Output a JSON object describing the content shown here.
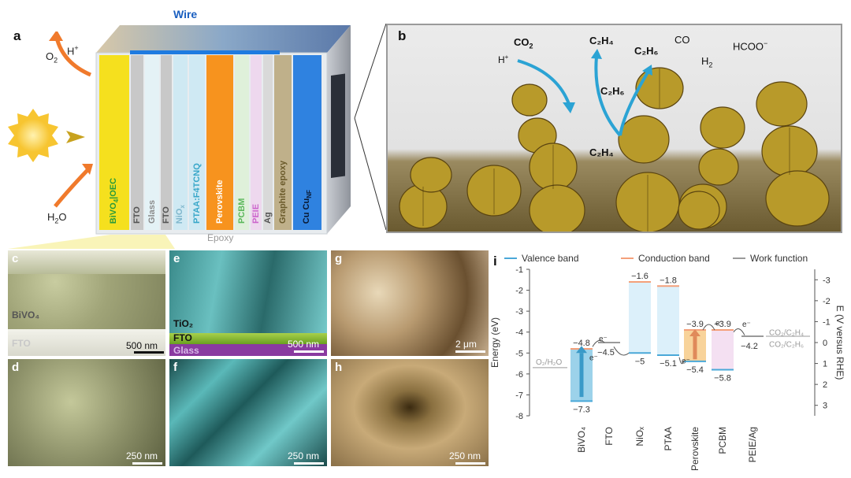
{
  "panels": {
    "a": "a",
    "b": "b",
    "c": "c",
    "d": "d",
    "e": "e",
    "f": "f",
    "g": "g",
    "h": "h",
    "i": "i"
  },
  "device": {
    "wire": "Wire",
    "epoxy": "Epoxy",
    "o2": "O",
    "o2_sub": "2",
    "hplus": "H",
    "hplus_sup": "+",
    "h2o": "H",
    "h2o_sub": "2",
    "h2o_end": "O",
    "layers": [
      {
        "label": "BiVO",
        "sub": "4",
        "after": "|OEC",
        "color": "#f5e01e",
        "text": "#2a9a3a"
      },
      {
        "label": "FTO",
        "color": "#c8c8c8",
        "text": "#555555"
      },
      {
        "label": "Glass",
        "color": "#e4f2f6",
        "text": "#8a8a8a"
      },
      {
        "label": "FTO",
        "color": "#c8c8c8",
        "text": "#555555"
      },
      {
        "label": "NiO",
        "sub": "x",
        "color": "#cfe9f3",
        "text": "#7fb6cc"
      },
      {
        "label": "PTAA:F4TCNQ",
        "color": "#cfe9f3",
        "text": "#39a7c9"
      },
      {
        "label": "Perovskite",
        "color": "#f7931e",
        "text": "#ffffff"
      },
      {
        "label": "PCBM",
        "color": "#dff0da",
        "text": "#5cb85c"
      },
      {
        "label": "PEIE",
        "color": "#eed8ee",
        "text": "#cc66cc"
      },
      {
        "label": "Ag",
        "color": "#d9d9d9",
        "text": "#555555"
      },
      {
        "label": "Graphite epoxy",
        "color": "#bfb08a",
        "text": "#6a5a2a"
      },
      {
        "label": "Cu Cu",
        "sub": "NF",
        "color": "#2f82e0",
        "text": "#0a1a33"
      }
    ]
  },
  "reaction": {
    "co2": "CO",
    "co2_sub": "2",
    "hplus": "H",
    "hplus_sup": "+",
    "c2h4_top": "C₂H₄",
    "c2h6_top": "C₂H₆",
    "co": "CO",
    "hcoo": "HCOO",
    "hcoo_sup": "−",
    "h2": "H",
    "h2_sub": "2",
    "c2h6_mid": "C₂H₆",
    "c2h4_low": "C₂H₄"
  },
  "sem": {
    "c": {
      "bivo4": "BiVO₄",
      "fto": "FTO",
      "scale": "500 nm"
    },
    "d": {
      "scale": "250 nm"
    },
    "e": {
      "tio2": "TiO₂",
      "fto": "FTO",
      "glass": "Glass",
      "scale": "500 nm"
    },
    "f": {
      "scale": "250 nm"
    },
    "g": {
      "scale": "2 μm"
    },
    "h": {
      "scale": "250 nm"
    }
  },
  "chart_data": {
    "type": "energy-level diagram",
    "legend": [
      {
        "name": "Valence band",
        "color": "#4aa8d8"
      },
      {
        "name": "Conduction band",
        "color": "#f4a07a"
      },
      {
        "name": "Work function",
        "color": "#9a9a9a"
      }
    ],
    "ylabel_left": "Energy (eV)",
    "ylabel_right": "E (V versus RHE)",
    "ylim": [
      -8,
      -1
    ],
    "yticks_left": [
      "-1",
      "-2",
      "-3",
      "-4",
      "-5",
      "-6",
      "-7",
      "-8"
    ],
    "yticks_right": [
      "-3",
      "-2",
      "-1",
      "0",
      "1",
      "2",
      "3"
    ],
    "categories": [
      "BiVO₄",
      "FTO",
      "NiOₓ",
      "PTAA",
      "Perovskite",
      "PCBM",
      "PEIE/Ag"
    ],
    "layers": [
      {
        "name": "BiVO₄",
        "cb": -4.8,
        "vb": -7.3,
        "cb_label": "−4.8",
        "vb_label": "−7.3"
      },
      {
        "name": "FTO",
        "wf": -4.5,
        "wf_label": "−4.5"
      },
      {
        "name": "NiOₓ",
        "cb": -1.6,
        "vb": -5.0,
        "cb_label": "−1.6",
        "vb_label": "−5"
      },
      {
        "name": "PTAA",
        "cb": -1.8,
        "vb": -5.1,
        "cb_label": "−1.8",
        "vb_label": "−5.1"
      },
      {
        "name": "Perovskite",
        "cb": -3.9,
        "vb": -5.4,
        "cb_label": "−3.9",
        "vb_label": "−5.4"
      },
      {
        "name": "PCBM",
        "cb": -3.9,
        "vb": -5.8,
        "cb_label": "−3.9",
        "vb_label": "−5.8"
      },
      {
        "name": "PEIE/Ag",
        "wf": -4.2,
        "wf_label": "−4.2"
      }
    ],
    "redox": [
      {
        "label": "O₂/H₂O",
        "energy": -5.7
      },
      {
        "label": "CO₂/C₂H₄",
        "energy": -4.0
      },
      {
        "label": "CO₂/C₂H₆",
        "energy": -4.4
      }
    ],
    "electron_label": "e⁻"
  }
}
